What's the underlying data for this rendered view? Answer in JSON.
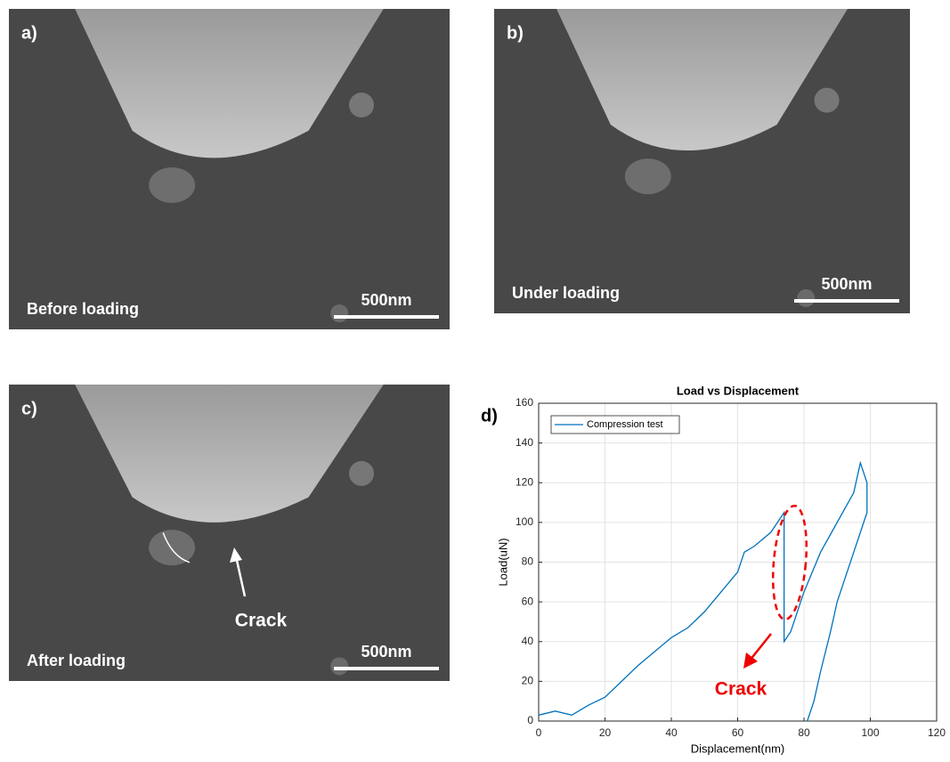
{
  "images": [
    {
      "label": "a)",
      "caption": "Before loading",
      "scale": "500nm"
    },
    {
      "label": "b)",
      "caption": "Under loading",
      "scale": "500nm"
    },
    {
      "label": "c)",
      "caption": "After loading",
      "scale": "500nm",
      "annotation": "Crack"
    }
  ],
  "chart_data": {
    "type": "line",
    "panel_label": "d)",
    "title": "Load vs Displacement",
    "x_label": "Displacement(nm)",
    "y_label": "Load(uN)",
    "annotation": "Crack",
    "xlim": [
      0,
      120
    ],
    "xticks": [
      0,
      20,
      40,
      60,
      80,
      100,
      120
    ],
    "ylim": [
      0,
      160
    ],
    "yticks": [
      0,
      20,
      40,
      60,
      80,
      100,
      120,
      140,
      160
    ],
    "grid": true,
    "legend": "top-left",
    "series": [
      {
        "name": "Compression test",
        "color": "#0072bd",
        "x": [
          0,
          5,
          10,
          15,
          20,
          25,
          30,
          35,
          40,
          45,
          50,
          55,
          60,
          62,
          65,
          70,
          72,
          74,
          74,
          76,
          78,
          80,
          85,
          90,
          95,
          97,
          98,
          99,
          99,
          98,
          95,
          92,
          90,
          88,
          85,
          83,
          81
        ],
        "values": [
          3,
          5,
          3,
          8,
          12,
          20,
          28,
          35,
          42,
          47,
          55,
          65,
          75,
          85,
          88,
          95,
          100,
          105,
          40,
          45,
          55,
          65,
          85,
          100,
          115,
          130,
          125,
          120,
          105,
          100,
          85,
          70,
          60,
          45,
          25,
          10,
          0
        ]
      }
    ]
  }
}
